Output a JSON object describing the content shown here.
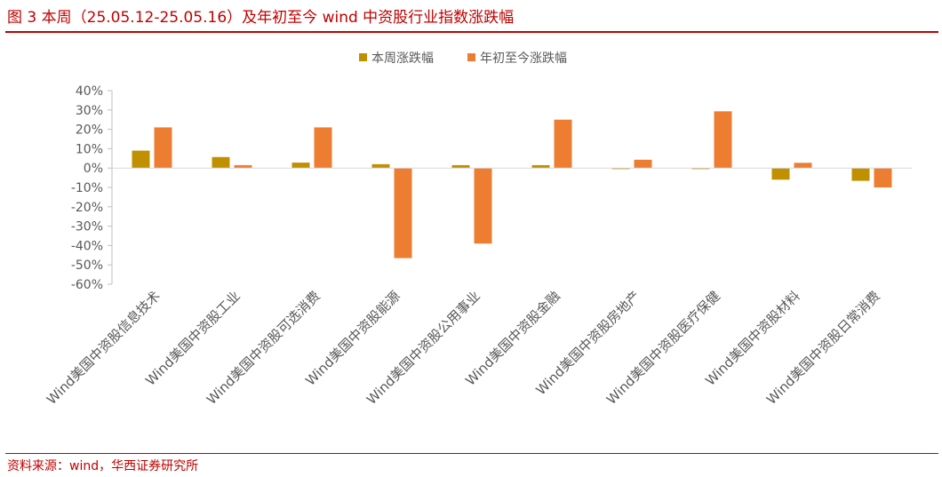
{
  "figure": {
    "title": "图 3   本周（25.05.12-25.05.16）及年初至今 wind 中资股行业指数涨跌幅",
    "source": "资料来源：wind，华西证券研究所"
  },
  "chart_data": {
    "type": "bar",
    "title": "",
    "xlabel": "",
    "ylabel": "",
    "ylim": [
      -0.6,
      0.4
    ],
    "y_ticks": [
      "40%",
      "30%",
      "20%",
      "10%",
      "0%",
      "-10%",
      "-20%",
      "-30%",
      "-40%",
      "-50%",
      "-60%"
    ],
    "legend_position": "top-center",
    "grid": false,
    "categories": [
      "Wind美国中资股信息技术",
      "Wind美国中资股工业",
      "Wind美国中资股可选消费",
      "Wind美国中资股能源",
      "Wind美国中资股公用事业",
      "Wind美国中资股金融",
      "Wind美国中资股房地产",
      "Wind美国中资股医疗保健",
      "Wind美国中资股材料",
      "Wind美国中资股日常消费"
    ],
    "series": [
      {
        "name": "本周涨跌幅",
        "color": "#c09000",
        "values": [
          0.09,
          0.057,
          0.028,
          0.02,
          0.015,
          0.015,
          -0.004,
          -0.004,
          -0.06,
          -0.066
        ]
      },
      {
        "name": "年初至今涨跌幅",
        "color": "#ed7d31",
        "values": [
          0.21,
          0.015,
          0.21,
          -0.465,
          -0.39,
          0.25,
          0.043,
          0.293,
          0.027,
          -0.1
        ]
      }
    ]
  }
}
